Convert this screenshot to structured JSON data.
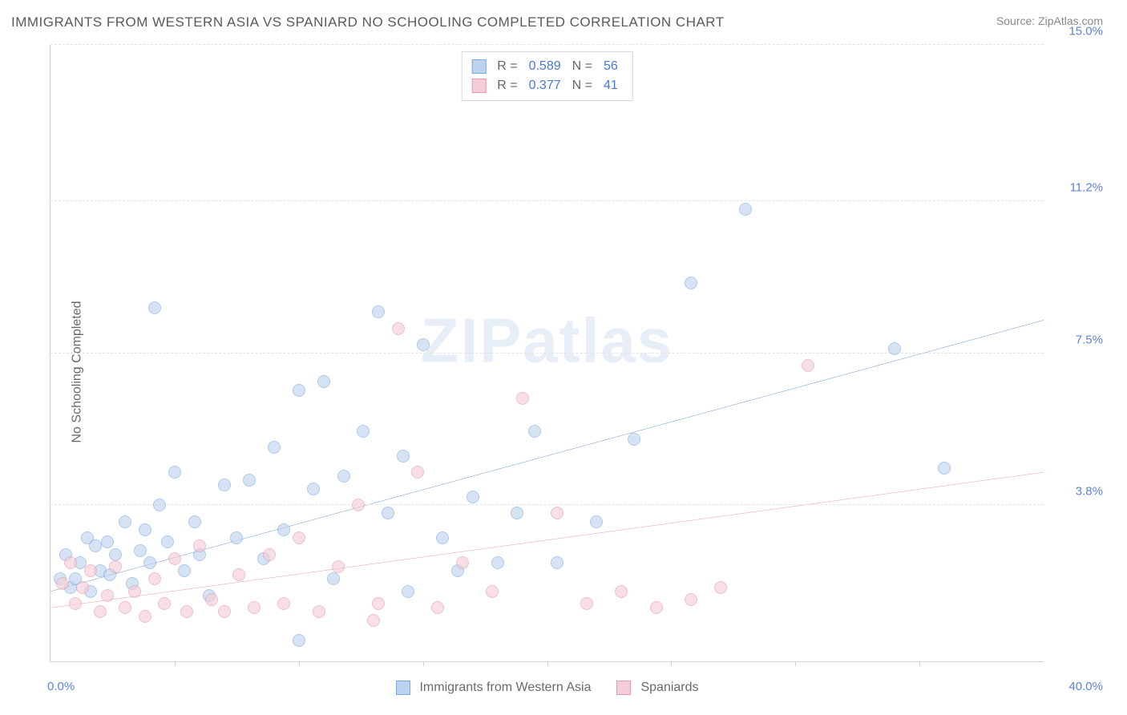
{
  "title": "IMMIGRANTS FROM WESTERN ASIA VS SPANIARD NO SCHOOLING COMPLETED CORRELATION CHART",
  "source": "Source: ZipAtlas.com",
  "ylabel": "No Schooling Completed",
  "watermark_a": "ZIP",
  "watermark_b": "atlas",
  "chart": {
    "type": "scatter",
    "xlim": [
      0,
      40
    ],
    "ylim": [
      0,
      15
    ],
    "x_tick_step": 5,
    "y_ticks": [
      3.8,
      7.5,
      11.2,
      15.0
    ],
    "y_tick_labels": [
      "3.8%",
      "7.5%",
      "11.2%",
      "15.0%"
    ],
    "x_min_label": "0.0%",
    "x_max_label": "40.0%",
    "background_color": "#ffffff",
    "grid_color": "#e4e4e4",
    "axis_color": "#d0d0d0",
    "tick_label_color": "#5b84d8",
    "marker_radius": 8,
    "marker_opacity": 0.62,
    "series": [
      {
        "id": "western_asia",
        "label": "Immigrants from Western Asia",
        "fill": "#bcd3ef",
        "stroke": "#7fa8dd",
        "line_color": "#2f63c4",
        "R": "0.589",
        "N": "56",
        "regression": {
          "x1": 0,
          "y1": 1.7,
          "x2": 40,
          "y2": 8.3
        },
        "points": [
          [
            0.4,
            2.0
          ],
          [
            0.6,
            2.6
          ],
          [
            0.8,
            1.8
          ],
          [
            1.0,
            2.0
          ],
          [
            1.2,
            2.4
          ],
          [
            1.5,
            3.0
          ],
          [
            1.6,
            1.7
          ],
          [
            1.8,
            2.8
          ],
          [
            2.0,
            2.2
          ],
          [
            2.3,
            2.9
          ],
          [
            2.4,
            2.1
          ],
          [
            2.6,
            2.6
          ],
          [
            3.0,
            3.4
          ],
          [
            3.3,
            1.9
          ],
          [
            3.6,
            2.7
          ],
          [
            3.8,
            3.2
          ],
          [
            4.0,
            2.4
          ],
          [
            4.4,
            3.8
          ],
          [
            4.7,
            2.9
          ],
          [
            5.0,
            4.6
          ],
          [
            5.4,
            2.2
          ],
          [
            5.8,
            3.4
          ],
          [
            6.0,
            2.6
          ],
          [
            6.4,
            1.6
          ],
          [
            7.0,
            4.3
          ],
          [
            7.5,
            3.0
          ],
          [
            8.0,
            4.4
          ],
          [
            8.6,
            2.5
          ],
          [
            9.0,
            5.2
          ],
          [
            9.4,
            3.2
          ],
          [
            10.0,
            6.6
          ],
          [
            10.0,
            0.5
          ],
          [
            10.6,
            4.2
          ],
          [
            11.0,
            6.8
          ],
          [
            11.4,
            2.0
          ],
          [
            11.8,
            4.5
          ],
          [
            12.6,
            5.6
          ],
          [
            13.2,
            8.5
          ],
          [
            13.6,
            3.6
          ],
          [
            14.2,
            5.0
          ],
          [
            14.4,
            1.7
          ],
          [
            15.0,
            7.7
          ],
          [
            15.8,
            3.0
          ],
          [
            16.4,
            2.2
          ],
          [
            17.0,
            4.0
          ],
          [
            18.0,
            2.4
          ],
          [
            18.8,
            3.6
          ],
          [
            19.5,
            5.6
          ],
          [
            20.4,
            2.4
          ],
          [
            22.0,
            3.4
          ],
          [
            23.5,
            5.4
          ],
          [
            25.8,
            9.2
          ],
          [
            28.0,
            11.0
          ],
          [
            34.0,
            7.6
          ],
          [
            36.0,
            4.7
          ],
          [
            4.2,
            8.6
          ]
        ]
      },
      {
        "id": "spaniards",
        "label": "Spaniards",
        "fill": "#f5cdd6",
        "stroke": "#e59aac",
        "line_color": "#e26f8b",
        "R": "0.377",
        "N": "41",
        "regression": {
          "x1": 0,
          "y1": 1.3,
          "x2": 40,
          "y2": 4.6
        },
        "points": [
          [
            0.5,
            1.9
          ],
          [
            0.8,
            2.4
          ],
          [
            1.0,
            1.4
          ],
          [
            1.3,
            1.8
          ],
          [
            1.6,
            2.2
          ],
          [
            2.0,
            1.2
          ],
          [
            2.3,
            1.6
          ],
          [
            2.6,
            2.3
          ],
          [
            3.0,
            1.3
          ],
          [
            3.4,
            1.7
          ],
          [
            3.8,
            1.1
          ],
          [
            4.2,
            2.0
          ],
          [
            4.6,
            1.4
          ],
          [
            5.0,
            2.5
          ],
          [
            5.5,
            1.2
          ],
          [
            6.0,
            2.8
          ],
          [
            6.5,
            1.5
          ],
          [
            7.0,
            1.2
          ],
          [
            7.6,
            2.1
          ],
          [
            8.2,
            1.3
          ],
          [
            8.8,
            2.6
          ],
          [
            9.4,
            1.4
          ],
          [
            10.0,
            3.0
          ],
          [
            10.8,
            1.2
          ],
          [
            11.6,
            2.3
          ],
          [
            12.4,
            3.8
          ],
          [
            13.2,
            1.4
          ],
          [
            14.0,
            8.1
          ],
          [
            14.8,
            4.6
          ],
          [
            15.6,
            1.3
          ],
          [
            16.6,
            2.4
          ],
          [
            17.8,
            1.7
          ],
          [
            19.0,
            6.4
          ],
          [
            20.4,
            3.6
          ],
          [
            21.6,
            1.4
          ],
          [
            23.0,
            1.7
          ],
          [
            24.4,
            1.3
          ],
          [
            25.8,
            1.5
          ],
          [
            27.0,
            1.8
          ],
          [
            30.5,
            7.2
          ],
          [
            13.0,
            1.0
          ]
        ]
      }
    ]
  },
  "legend": {
    "series1_label": "Immigrants from Western Asia",
    "series2_label": "Spaniards"
  },
  "stats_labels": {
    "R": "R =",
    "N": "N ="
  }
}
